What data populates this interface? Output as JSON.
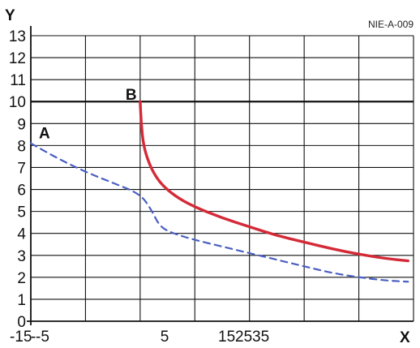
{
  "chart_data": {
    "type": "line",
    "figure_code": "NIE-A-009",
    "xlabel": "X",
    "ylabel": "Y",
    "ylim": [
      0,
      13
    ],
    "y_ticks": [
      0,
      1,
      2,
      3,
      4,
      5,
      6,
      7,
      8,
      9,
      10,
      11,
      12,
      13
    ],
    "x_tick_labels": [
      "-15",
      "-5",
      "5",
      "15",
      "25",
      "35"
    ],
    "grid": true,
    "emphasized_gridline_y": 10,
    "series": [
      {
        "name": "A",
        "style": "dashed",
        "color": "#4a5fc1",
        "points": [
          [
            -15,
            8.1
          ],
          [
            -12.5,
            7.4
          ],
          [
            -10,
            6.8
          ],
          [
            -7.5,
            6.3
          ],
          [
            -5,
            5.8
          ],
          [
            -4,
            5.1
          ],
          [
            -3.2,
            4.3
          ],
          [
            -2,
            4.0
          ],
          [
            0,
            3.7
          ],
          [
            2.5,
            3.4
          ],
          [
            5,
            3.1
          ],
          [
            7.5,
            2.8
          ],
          [
            10,
            2.5
          ],
          [
            12.5,
            2.2
          ],
          [
            15,
            2.0
          ],
          [
            17.5,
            1.85
          ],
          [
            19.5,
            1.8
          ]
        ]
      },
      {
        "name": "B",
        "style": "solid",
        "color": "#d42a37",
        "points": [
          [
            -5,
            10.0
          ],
          [
            -4.9,
            9.0
          ],
          [
            -4.7,
            8.0
          ],
          [
            -4.2,
            7.2
          ],
          [
            -3.6,
            6.6
          ],
          [
            -2.8,
            6.1
          ],
          [
            -1.5,
            5.6
          ],
          [
            0,
            5.2
          ],
          [
            2.5,
            4.7
          ],
          [
            5,
            4.3
          ],
          [
            7.5,
            3.9
          ],
          [
            10,
            3.6
          ],
          [
            12.5,
            3.3
          ],
          [
            15,
            3.05
          ],
          [
            17.5,
            2.85
          ],
          [
            19.5,
            2.75
          ]
        ]
      }
    ]
  }
}
